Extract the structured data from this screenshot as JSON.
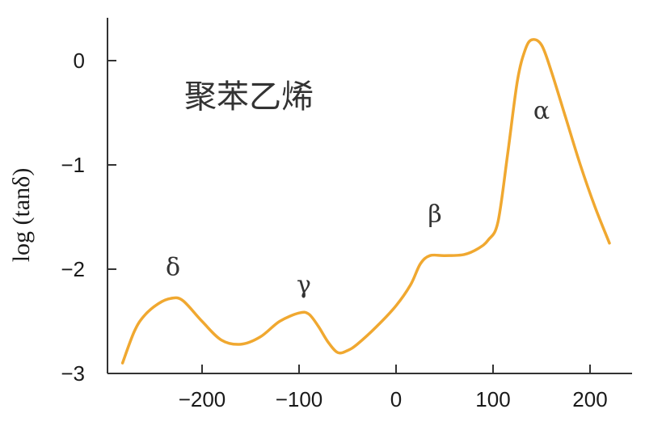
{
  "chart_data": {
    "type": "line",
    "title": "聚苯乙烯",
    "xlabel": "",
    "ylabel": "log (tanδ)",
    "xlim": [
      -285,
      225
    ],
    "ylim": [
      -3,
      0.43
    ],
    "xticks": [
      -200,
      -100,
      0,
      100,
      200
    ],
    "xtick_labels": [
      "−200",
      "−100",
      "0",
      "100",
      "200"
    ],
    "yticks": [
      0,
      -1,
      -2,
      -3
    ],
    "ytick_labels": [
      "0",
      "−1",
      "−2",
      "−3"
    ],
    "grid": false,
    "series": [
      {
        "color": "#f0a830",
        "x": [
          -282,
          -270,
          -260,
          -245,
          -232,
          -220,
          -200,
          -180,
          -160,
          -140,
          -120,
          -100,
          -90,
          -80,
          -70,
          -60,
          -50,
          -40,
          -20,
          0,
          15,
          25,
          35,
          50,
          70,
          85,
          95,
          105,
          115,
          125,
          133,
          140,
          150,
          160,
          175,
          190,
          205,
          220
        ],
        "y": [
          -2.9,
          -2.6,
          -2.45,
          -2.33,
          -2.28,
          -2.3,
          -2.5,
          -2.68,
          -2.72,
          -2.65,
          -2.5,
          -2.42,
          -2.43,
          -2.55,
          -2.7,
          -2.8,
          -2.78,
          -2.72,
          -2.55,
          -2.35,
          -2.15,
          -1.95,
          -1.87,
          -1.87,
          -1.86,
          -1.8,
          -1.72,
          -1.55,
          -0.9,
          -0.2,
          0.1,
          0.2,
          0.15,
          -0.1,
          -0.55,
          -1.0,
          -1.4,
          -1.75
        ]
      }
    ],
    "annotations": [
      {
        "text": "δ",
        "x": -230,
        "y": -2.06
      },
      {
        "text": "γ",
        "x": -95,
        "y": -2.23
      },
      {
        "text": "β",
        "x": 40,
        "y": -1.55
      },
      {
        "text": "α",
        "x": 150,
        "y": -0.56
      }
    ]
  }
}
